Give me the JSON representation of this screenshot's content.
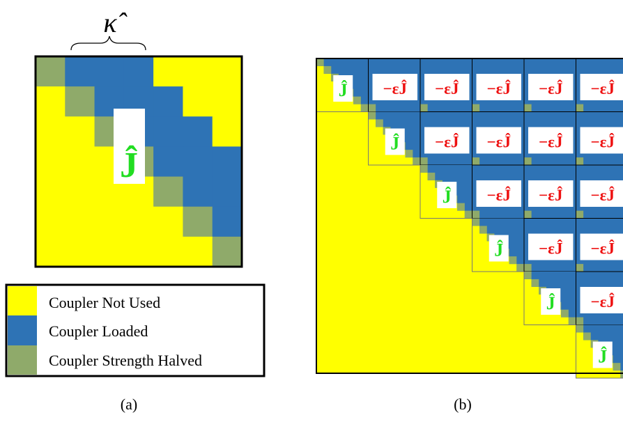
{
  "panel_a": {
    "kappa_label": "κ̂",
    "block_label": "Ĵ",
    "caption": "(a)"
  },
  "legend": {
    "items": [
      {
        "label": "Coupler Not Used",
        "color": "#ffff00"
      },
      {
        "label": "Coupler Loaded",
        "color": "#2e73b5"
      },
      {
        "label": "Coupler Strength Halved",
        "color": "#8faa6a"
      }
    ]
  },
  "panel_b": {
    "diag_label": "Ĵ",
    "offdiag_label": "−εĴ",
    "caption": "(b)"
  },
  "colors": {
    "unused": "#ffff00",
    "loaded": "#2e73b5",
    "halved": "#8faa6a",
    "j_diag": "#22dd22",
    "j_offdiag": "#ee1111"
  }
}
